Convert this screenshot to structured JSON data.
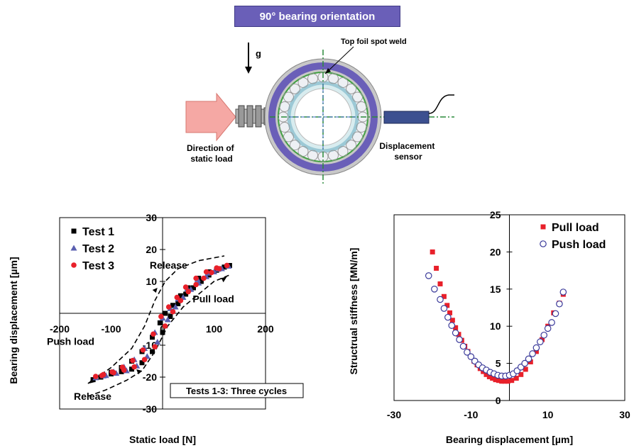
{
  "diagram": {
    "title": "90°  bearing orientation",
    "gravity_label": "g",
    "weld_label": "Top foil spot weld",
    "load_label_line1": "Direction of",
    "load_label_line2": "static load",
    "sensor_label_line1": "Displacement",
    "sensor_label_line2": "sensor"
  },
  "chart_data": [
    {
      "type": "scatter",
      "xlabel": "Static load [N]",
      "ylabel": "Bearing displacement [µm]",
      "xlim": [
        -200,
        200
      ],
      "ylim": [
        -30,
        30
      ],
      "xticks": [
        -200,
        -100,
        0,
        100,
        200
      ],
      "yticks": [
        -30,
        -20,
        -10,
        0,
        10,
        20,
        30
      ],
      "xtick_labels": [
        "-200",
        "-100",
        "0",
        "100",
        "200"
      ],
      "ytick_labels": [
        "-30",
        "-20",
        "-10",
        "0",
        "10",
        "20",
        "30"
      ],
      "legend_position": "top-left",
      "series": [
        {
          "name": "Test 1",
          "marker": "square",
          "color": "#000000",
          "loading": [
            [
              -135,
              -20.8
            ],
            [
              -120,
              -20
            ],
            [
              -100,
              -19
            ],
            [
              -80,
              -18.3
            ],
            [
              -60,
              -17.5
            ],
            [
              -40,
              -15.5
            ],
            [
              -20,
              -12
            ],
            [
              0,
              -6
            ],
            [
              15,
              -1
            ],
            [
              30,
              3
            ],
            [
              45,
              6
            ],
            [
              60,
              8
            ],
            [
              75,
              10
            ],
            [
              90,
              12
            ],
            [
              105,
              13.5
            ],
            [
              120,
              14.5
            ],
            [
              130,
              15
            ]
          ],
          "unloading": [
            [
              130,
              15
            ],
            [
              110,
              14
            ],
            [
              90,
              13
            ],
            [
              70,
              11
            ],
            [
              50,
              8
            ],
            [
              35,
              5.5
            ],
            [
              20,
              2.5
            ],
            [
              5,
              0
            ],
            [
              -5,
              -3
            ],
            [
              -20,
              -7.5
            ],
            [
              -40,
              -12
            ],
            [
              -60,
              -15
            ],
            [
              -80,
              -17
            ],
            [
              -100,
              -18.5
            ],
            [
              -120,
              -20
            ]
          ]
        },
        {
          "name": "Test 2",
          "marker": "triangle",
          "color": "#5a5fb0",
          "loading": [
            [
              -130,
              -20.2
            ],
            [
              -110,
              -19.5
            ],
            [
              -90,
              -18.8
            ],
            [
              -70,
              -18
            ],
            [
              -50,
              -16.5
            ],
            [
              -30,
              -13.5
            ],
            [
              -10,
              -9
            ],
            [
              10,
              -2
            ],
            [
              25,
              2
            ],
            [
              40,
              5
            ],
            [
              55,
              7.5
            ],
            [
              70,
              9.5
            ],
            [
              85,
              11.5
            ],
            [
              100,
              13
            ],
            [
              115,
              14
            ],
            [
              128,
              14.8
            ]
          ],
          "unloading": [
            [
              128,
              14.8
            ],
            [
              108,
              13.8
            ],
            [
              88,
              12.6
            ],
            [
              68,
              10.6
            ],
            [
              48,
              7.6
            ],
            [
              30,
              4.5
            ],
            [
              15,
              1.5
            ],
            [
              0,
              -1.5
            ],
            [
              -15,
              -6
            ],
            [
              -35,
              -11
            ],
            [
              -55,
              -14.5
            ],
            [
              -75,
              -16.8
            ],
            [
              -95,
              -18.3
            ],
            [
              -115,
              -19.6
            ]
          ]
        },
        {
          "name": "Test 3",
          "marker": "circle",
          "color": "#e8202a",
          "loading": [
            [
              -130,
              -19.8
            ],
            [
              -115,
              -19.2
            ],
            [
              -95,
              -18.6
            ],
            [
              -75,
              -17.8
            ],
            [
              -55,
              -16.8
            ],
            [
              -35,
              -14.5
            ],
            [
              -15,
              -10.5
            ],
            [
              5,
              -4
            ],
            [
              20,
              0.5
            ],
            [
              35,
              4
            ],
            [
              50,
              6.8
            ],
            [
              65,
              9
            ],
            [
              80,
              11
            ],
            [
              95,
              12.8
            ],
            [
              110,
              14
            ],
            [
              125,
              15
            ]
          ],
          "unloading": [
            [
              125,
              15
            ],
            [
              105,
              14.2
            ],
            [
              85,
              13
            ],
            [
              65,
              11
            ],
            [
              45,
              8.2
            ],
            [
              28,
              5
            ],
            [
              12,
              2
            ],
            [
              -3,
              -1
            ],
            [
              -18,
              -6.5
            ],
            [
              -38,
              -11.5
            ],
            [
              -58,
              -14.8
            ],
            [
              -78,
              -16.9
            ],
            [
              -98,
              -18.4
            ],
            [
              -118,
              -19.5
            ]
          ]
        }
      ],
      "annotations": [
        {
          "text": "Release",
          "x": -25,
          "y": 14
        },
        {
          "text": "Pull load",
          "x": 150,
          "y": 3.5
        },
        {
          "text": "Push load",
          "x": -160,
          "y": -9
        },
        {
          "text": "Release",
          "x": -130,
          "y": -28
        },
        {
          "text": "Tests 1-3: Three cycles",
          "x": 95,
          "y": -26
        }
      ]
    },
    {
      "type": "scatter",
      "xlabel": "Bearing displacement [µm]",
      "ylabel": "Structrual stiffness [MN/m]",
      "xlim": [
        -30,
        30
      ],
      "ylim": [
        0,
        25
      ],
      "xticks": [
        -30,
        -10,
        10,
        30
      ],
      "yticks": [
        0,
        5,
        10,
        15,
        20,
        25
      ],
      "xtick_labels": [
        "-30",
        "-10",
        "10",
        "30"
      ],
      "ytick_labels": [
        "0",
        "5",
        "10",
        "15",
        "20",
        "25"
      ],
      "legend_position": "top-right",
      "series": [
        {
          "name": "Pull load",
          "marker": "filled-square",
          "color": "#e8202a",
          "points": [
            [
              -20,
              20
            ],
            [
              -19,
              17.8
            ],
            [
              -18,
              15.7
            ],
            [
              -17,
              14
            ],
            [
              -16.2,
              12.8
            ],
            [
              -15.5,
              11.8
            ],
            [
              -14.8,
              10.8
            ],
            [
              -14,
              9.8
            ],
            [
              -13.2,
              8.9
            ],
            [
              -12.4,
              8.1
            ],
            [
              -11.6,
              7.3
            ],
            [
              -10.8,
              6.6
            ],
            [
              -10,
              5.9
            ],
            [
              -9.2,
              5.3
            ],
            [
              -8.4,
              4.8
            ],
            [
              -7.6,
              4.3
            ],
            [
              -6.8,
              3.9
            ],
            [
              -6,
              3.5
            ],
            [
              -5.2,
              3.2
            ],
            [
              -4.4,
              3
            ],
            [
              -3.6,
              2.8
            ],
            [
              -2.8,
              2.7
            ],
            [
              -2,
              2.6
            ],
            [
              -1.2,
              2.6
            ],
            [
              -0.4,
              2.6
            ],
            [
              0.6,
              2.7
            ],
            [
              1.8,
              3
            ],
            [
              3,
              3.5
            ],
            [
              4.2,
              4.2
            ],
            [
              5.5,
              5.2
            ],
            [
              7,
              6.6
            ],
            [
              8.5,
              8.2
            ],
            [
              10,
              10
            ],
            [
              11.5,
              11.8
            ],
            [
              13,
              13.1
            ],
            [
              14,
              14.3
            ]
          ]
        },
        {
          "name": "Push load",
          "marker": "hollow-circle",
          "color": "#3a3a9a",
          "points": [
            [
              -21,
              16.8
            ],
            [
              -19.5,
              15
            ],
            [
              -18,
              13.6
            ],
            [
              -17,
              12.4
            ],
            [
              -16,
              11.2
            ],
            [
              -15,
              10.1
            ],
            [
              -14,
              9.1
            ],
            [
              -13,
              8.2
            ],
            [
              -12,
              7.3
            ],
            [
              -11,
              6.5
            ],
            [
              -10,
              5.9
            ],
            [
              -9,
              5.3
            ],
            [
              -8,
              4.8
            ],
            [
              -7,
              4.4
            ],
            [
              -6,
              4.1
            ],
            [
              -5,
              3.8
            ],
            [
              -4,
              3.6
            ],
            [
              -3,
              3.4
            ],
            [
              -2,
              3.3
            ],
            [
              -1,
              3.3
            ],
            [
              0,
              3.4
            ],
            [
              1,
              3.6
            ],
            [
              2,
              4
            ],
            [
              3,
              4.5
            ],
            [
              4,
              5
            ],
            [
              5,
              5.6
            ],
            [
              6,
              6.3
            ],
            [
              7,
              7.1
            ],
            [
              8,
              7.9
            ],
            [
              9,
              8.8
            ],
            [
              10,
              9.7
            ],
            [
              11,
              10.5
            ],
            [
              12,
              11.7
            ],
            [
              13,
              13
            ],
            [
              14,
              14.6
            ]
          ]
        }
      ]
    }
  ]
}
